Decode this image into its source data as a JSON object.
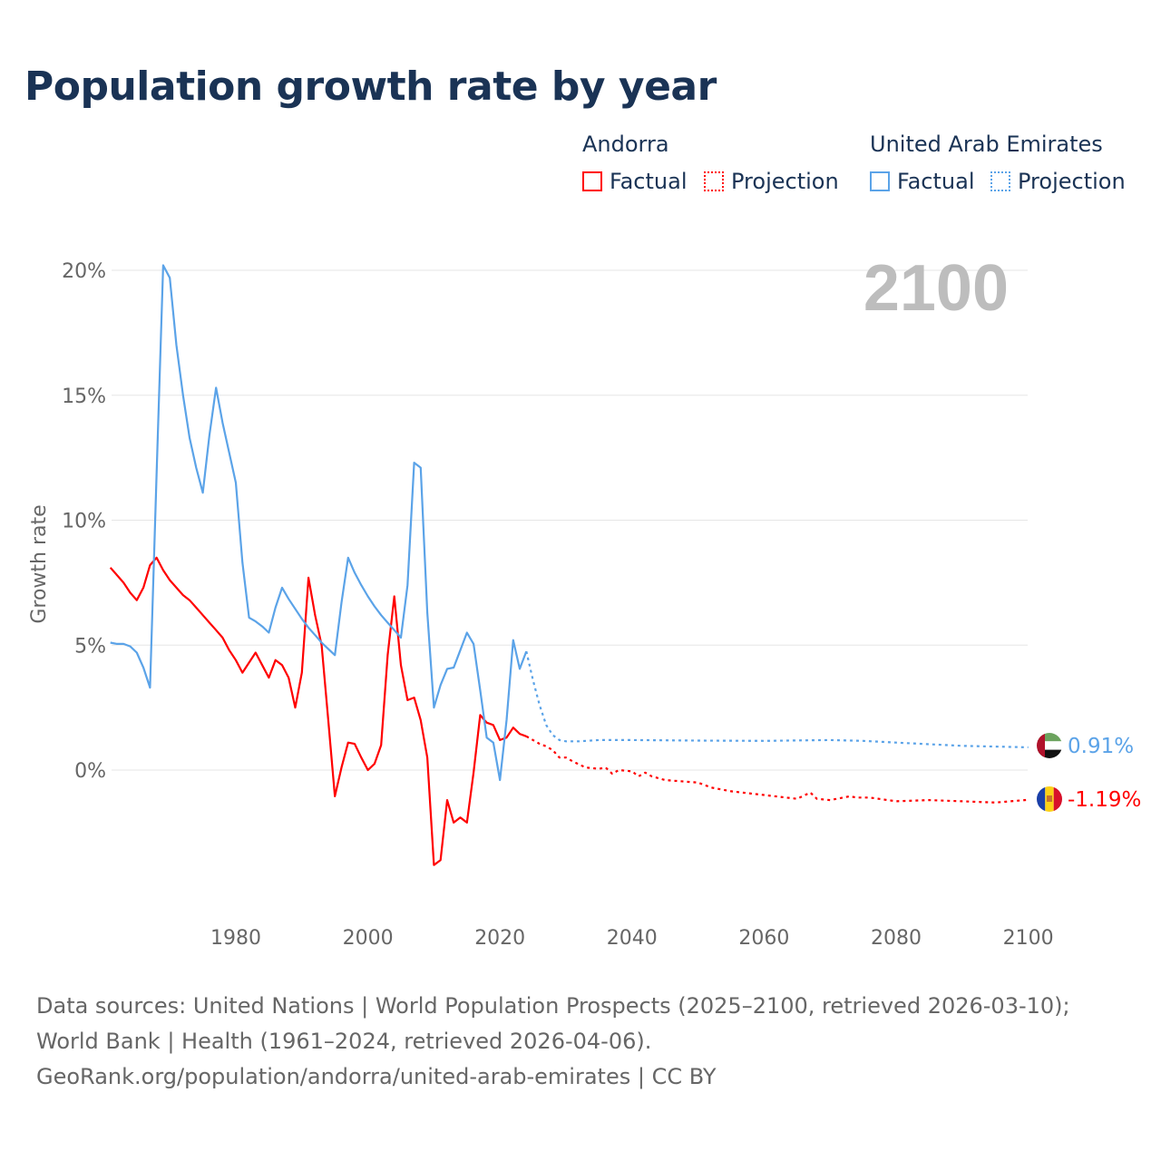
{
  "title": "Population growth rate by year",
  "legend": {
    "groups": [
      {
        "name": "Andorra",
        "factual": "Factual",
        "projection": "Projection",
        "color": "#ff0000"
      },
      {
        "name": "United Arab Emirates",
        "factual": "Factual",
        "projection": "Projection",
        "color": "#5ba3e8"
      }
    ]
  },
  "year_watermark": "2100",
  "source_line1": "Data sources: United Nations | World Population Prospects (2025–2100, retrieved 2026-03-10); World Bank | Health (1961–2024, retrieved 2026-04-06).",
  "source_line2": "GeoRank.org/population/andorra/united-arab-emirates | CC BY",
  "chart_data": {
    "type": "line",
    "title": "Population growth rate by year",
    "xlabel": "",
    "ylabel": "Growth rate",
    "xlim": [
      1961,
      2100
    ],
    "ylim": [
      -5.5,
      20.5
    ],
    "xticks": [
      1980,
      2000,
      2020,
      2040,
      2060,
      2080,
      2100
    ],
    "xtick_labels": [
      "1980",
      "2000",
      "2020",
      "2040",
      "2060",
      "2080",
      "2100"
    ],
    "yticks": [
      0,
      5,
      10,
      15,
      20
    ],
    "ytick_labels": [
      "0%",
      "5%",
      "10%",
      "15%",
      "20%"
    ],
    "grid": true,
    "legend_position": "top-right",
    "series": [
      {
        "name": "Andorra Factual",
        "color": "#ff0000",
        "style": "solid",
        "x": [
          1961,
          1962,
          1963,
          1964,
          1965,
          1966,
          1967,
          1968,
          1969,
          1970,
          1971,
          1972,
          1973,
          1974,
          1975,
          1976,
          1977,
          1978,
          1979,
          1980,
          1981,
          1982,
          1983,
          1984,
          1985,
          1986,
          1987,
          1988,
          1989,
          1990,
          1991,
          1992,
          1993,
          1994,
          1995,
          1996,
          1997,
          1998,
          1999,
          2000,
          2001,
          2002,
          2003,
          2004,
          2005,
          2006,
          2007,
          2008,
          2009,
          2010,
          2011,
          2012,
          2013,
          2014,
          2015,
          2016,
          2017,
          2018,
          2019,
          2020,
          2021,
          2022,
          2023,
          2024
        ],
        "y": [
          8.1,
          7.8,
          7.5,
          7.1,
          6.8,
          7.3,
          8.2,
          8.5,
          8.0,
          7.6,
          7.3,
          7.0,
          6.8,
          6.5,
          6.2,
          5.9,
          5.6,
          5.3,
          4.8,
          4.4,
          3.9,
          4.3,
          4.7,
          4.2,
          3.7,
          4.4,
          4.2,
          3.7,
          2.5,
          3.9,
          7.7,
          6.2,
          5.0,
          2.0,
          -1.05,
          0.1,
          1.1,
          1.05,
          0.5,
          0.0,
          0.25,
          1.0,
          4.6,
          6.95,
          4.2,
          2.8,
          2.9,
          2.0,
          0.5,
          -3.8,
          -3.6,
          -1.2,
          -2.1,
          -1.9,
          -2.1,
          -0.1,
          2.2,
          1.9,
          1.8,
          1.2,
          1.3,
          1.7,
          1.45,
          1.35
        ]
      },
      {
        "name": "Andorra Projection",
        "color": "#ff0000",
        "style": "dotted",
        "x": [
          2024,
          2025,
          2026,
          2027,
          2028,
          2029,
          2030,
          2031,
          2033,
          2035,
          2036,
          2037,
          2038,
          2040,
          2041,
          2042,
          2043,
          2045,
          2050,
          2052,
          2055,
          2060,
          2065,
          2067,
          2068,
          2070,
          2073,
          2074,
          2076,
          2080,
          2085,
          2090,
          2095,
          2100
        ],
        "y": [
          1.35,
          1.2,
          1.05,
          0.95,
          0.8,
          0.5,
          0.5,
          0.35,
          0.1,
          0.05,
          0.1,
          -0.15,
          0.0,
          -0.05,
          -0.25,
          -0.1,
          -0.25,
          -0.4,
          -0.5,
          -0.7,
          -0.85,
          -1.0,
          -1.15,
          -0.9,
          -1.15,
          -1.2,
          -1.05,
          -1.1,
          -1.1,
          -1.25,
          -1.2,
          -1.25,
          -1.3,
          -1.19
        ]
      },
      {
        "name": "United Arab Emirates Factual",
        "color": "#5ba3e8",
        "style": "solid",
        "x": [
          1961,
          1962,
          1963,
          1964,
          1965,
          1966,
          1967,
          1968,
          1969,
          1970,
          1971,
          1972,
          1973,
          1974,
          1975,
          1976,
          1977,
          1978,
          1979,
          1980,
          1981,
          1982,
          1983,
          1984,
          1985,
          1986,
          1987,
          1988,
          1989,
          1990,
          1991,
          1992,
          1993,
          1994,
          1995,
          1996,
          1997,
          1998,
          1999,
          2000,
          2001,
          2002,
          2003,
          2004,
          2005,
          2006,
          2007,
          2008,
          2009,
          2010,
          2011,
          2012,
          2013,
          2014,
          2015,
          2016,
          2017,
          2018,
          2019,
          2020,
          2021,
          2022,
          2023,
          2024
        ],
        "y": [
          5.1,
          5.05,
          5.05,
          4.95,
          4.7,
          4.1,
          3.3,
          11.8,
          20.2,
          19.7,
          17.0,
          15.0,
          13.3,
          12.1,
          11.1,
          13.4,
          15.3,
          13.9,
          12.7,
          11.5,
          8.3,
          6.1,
          5.95,
          5.75,
          5.5,
          6.5,
          7.3,
          6.85,
          6.45,
          6.05,
          5.7,
          5.4,
          5.1,
          4.85,
          4.6,
          6.7,
          8.5,
          7.9,
          7.4,
          6.95,
          6.55,
          6.2,
          5.9,
          5.6,
          5.3,
          7.4,
          12.3,
          12.1,
          6.3,
          2.5,
          3.4,
          4.05,
          4.1,
          4.8,
          5.5,
          5.05,
          3.2,
          1.3,
          1.1,
          -0.4,
          2.0,
          5.2,
          4.05,
          4.75
        ]
      },
      {
        "name": "United Arab Emirates Projection",
        "color": "#5ba3e8",
        "style": "dotted",
        "x": [
          2024,
          2025,
          2026,
          2027,
          2028,
          2029,
          2030,
          2032,
          2035,
          2040,
          2050,
          2060,
          2070,
          2075,
          2080,
          2090,
          2100
        ],
        "y": [
          4.75,
          3.6,
          2.6,
          1.8,
          1.4,
          1.2,
          1.15,
          1.15,
          1.2,
          1.2,
          1.18,
          1.17,
          1.2,
          1.17,
          1.1,
          0.97,
          0.91
        ]
      }
    ],
    "end_labels": [
      {
        "country": "United Arab Emirates",
        "text": "0.91%",
        "value": 0.91,
        "color": "#5ba3e8"
      },
      {
        "country": "Andorra",
        "text": "-1.19%",
        "value": -1.19,
        "color": "#ff0000"
      }
    ]
  }
}
